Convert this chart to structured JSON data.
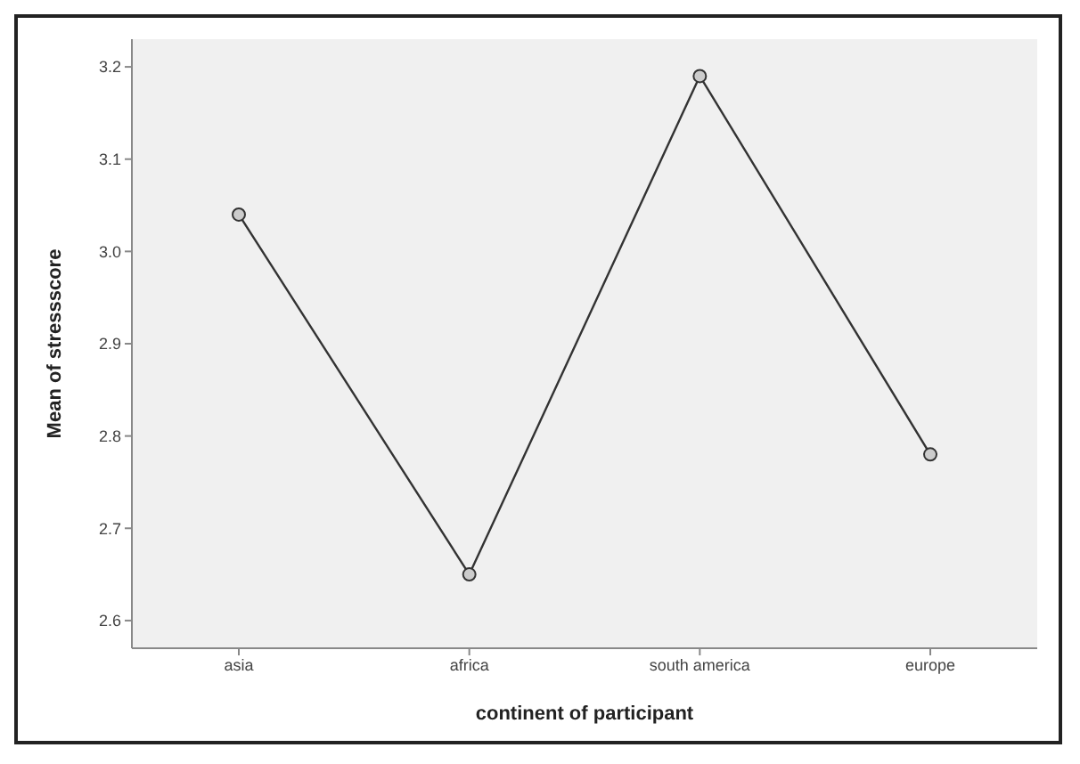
{
  "chart_data": {
    "type": "line",
    "xlabel": "continent of participant",
    "ylabel": "Mean of stressscore",
    "categories": [
      "asia",
      "africa",
      "south america",
      "europe"
    ],
    "series": [
      {
        "color": "#333333",
        "values": [
          3.04,
          2.65,
          3.19,
          2.78
        ]
      }
    ],
    "ylim": [
      2.57,
      3.23
    ],
    "yticks": [
      2.6,
      2.7,
      2.8,
      2.9,
      {
        "value": 3,
        "label": "3.0"
      },
      3.1,
      3.2
    ],
    "grid": false,
    "legend": false,
    "marker": "circle",
    "line_style": "solid"
  }
}
